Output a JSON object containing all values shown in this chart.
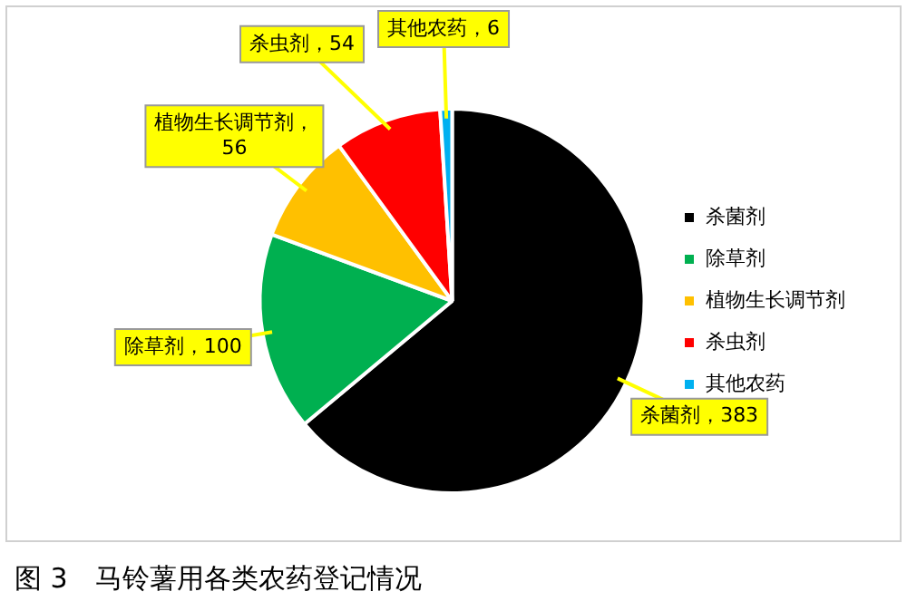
{
  "chart_data": {
    "type": "pie",
    "categories": [
      "杀菌剂",
      "除草剂",
      "植物生长调节剂",
      "杀虫剂",
      "其他农药"
    ],
    "values": [
      383,
      100,
      56,
      54,
      6
    ],
    "colors": [
      "#000000",
      "#00b050",
      "#ffc000",
      "#ff0000",
      "#00b0f0"
    ],
    "value_labels": [
      "杀菌剂，383",
      "除草剂，100",
      "植物生长调节剂，56",
      "杀虫剂，54",
      "其他农药，6"
    ],
    "legend": "right",
    "annotations": [
      "图 3　马铃薯用各类农药登记情况"
    ]
  }
}
